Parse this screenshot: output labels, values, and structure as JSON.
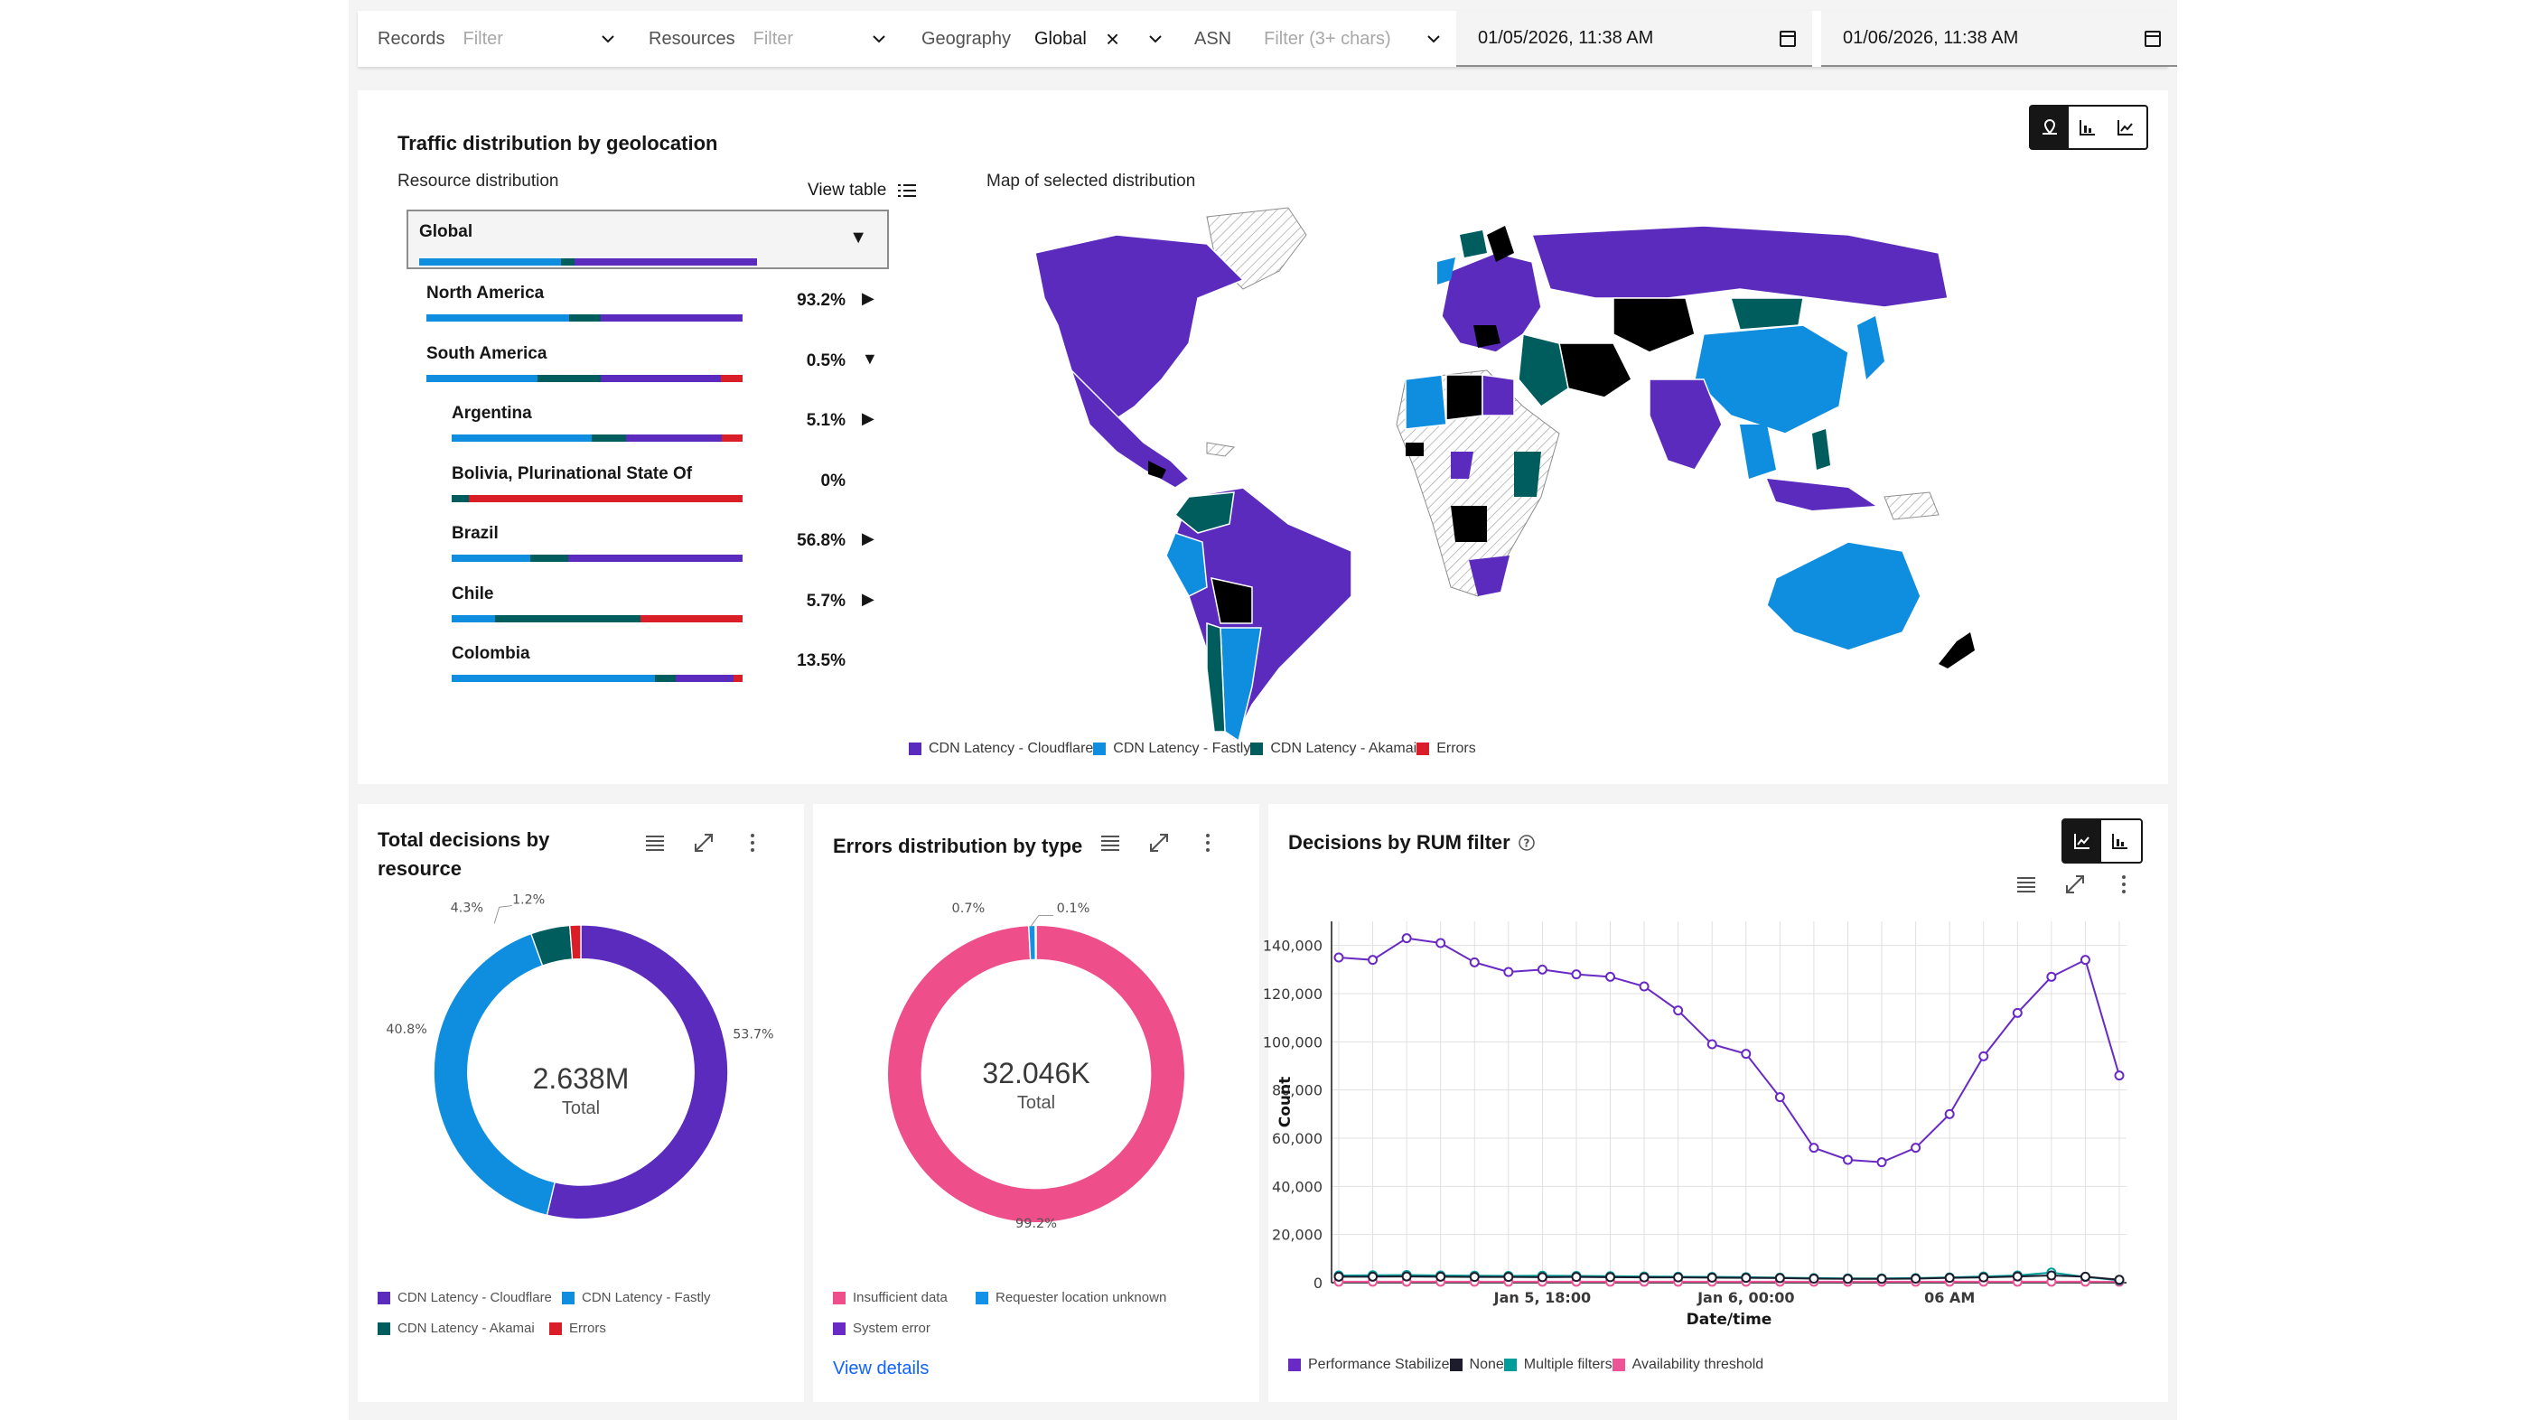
{
  "filters": {
    "records_label": "Records",
    "records_placeholder": "Filter",
    "resources_label": "Resources",
    "resources_placeholder": "Filter",
    "geography_label": "Geography",
    "geography_value": "Global",
    "asn_label": "ASN",
    "asn_placeholder": "Filter (3+ chars)",
    "date_from": "01/05/2026, 11:38 AM",
    "date_to": "01/06/2026, 11:38 AM"
  },
  "geo_panel": {
    "title": "Traffic distribution by geolocation",
    "resource_distribution_label": "Resource distribution",
    "view_table_label": "View table",
    "map_label": "Map of selected distribution",
    "selected": "Global",
    "rows": [
      {
        "name": "North America",
        "pct": "93.2%",
        "arrow": "▶",
        "indent": 0,
        "bar": [
          0.45,
          0.1,
          0.45,
          0.0
        ]
      },
      {
        "name": "South America",
        "pct": "0.5%",
        "arrow": "▼",
        "indent": 0,
        "bar": [
          0.35,
          0.2,
          0.38,
          0.07
        ]
      },
      {
        "name": "Argentina",
        "pct": "5.1%",
        "arrow": "▶",
        "indent": 1,
        "bar": [
          0.48,
          0.12,
          0.33,
          0.07
        ]
      },
      {
        "name": "Bolivia, Plurinational State Of",
        "pct": "0%",
        "arrow": "",
        "indent": 1,
        "bar": [
          0.0,
          0.06,
          0.0,
          0.94
        ]
      },
      {
        "name": "Brazil",
        "pct": "56.8%",
        "arrow": "▶",
        "indent": 1,
        "bar": [
          0.27,
          0.13,
          0.6,
          0.0
        ]
      },
      {
        "name": "Chile",
        "pct": "5.7%",
        "arrow": "▶",
        "indent": 1,
        "bar": [
          0.15,
          0.5,
          0.0,
          0.35
        ]
      },
      {
        "name": "Colombia",
        "pct": "13.5%",
        "arrow": "",
        "indent": 1,
        "bar": [
          0.7,
          0.07,
          0.2,
          0.03
        ]
      }
    ],
    "legend": [
      "CDN Latency - Cloudflare",
      "CDN Latency - Fastly",
      "CDN Latency - Akamai",
      "Errors"
    ]
  },
  "colors": {
    "cloudflare": "#5b2bbd",
    "fastly": "#0f8ee0",
    "akamai": "#005d5d",
    "errors": "#da1e28",
    "insufficient": "#ee4f8a",
    "requester": "#1192e8",
    "system": "#6929c4",
    "none": "#1c1c2c",
    "multiple": "#009d9a",
    "availability": "#ee5396"
  },
  "decisions_panel": {
    "title_line1": "Total decisions by",
    "title_line2": "resource",
    "total_value": "2.638M",
    "total_label": "Total",
    "legend": [
      "CDN Latency - Cloudflare",
      "CDN Latency - Fastly",
      "CDN Latency - Akamai",
      "Errors"
    ]
  },
  "errors_panel": {
    "title": "Errors distribution by type",
    "total_value": "32.046K",
    "total_label": "Total",
    "legend": [
      "Insufficient data",
      "Requester location unknown",
      "System error"
    ],
    "view_details": "View details"
  },
  "rum_panel": {
    "title": "Decisions by RUM filter",
    "legend": [
      "Performance Stabilize",
      "None",
      "Multiple filters",
      "Availability threshold"
    ]
  },
  "chart_data": [
    {
      "type": "pie",
      "title": "Total decisions by resource",
      "categories": [
        "CDN Latency - Cloudflare",
        "CDN Latency - Fastly",
        "CDN Latency - Akamai",
        "Errors"
      ],
      "values": [
        53.7,
        40.8,
        4.3,
        1.2
      ],
      "labels": [
        "53.7%",
        "40.8%",
        "4.3%",
        "1.2%"
      ]
    },
    {
      "type": "pie",
      "title": "Errors distribution by type",
      "categories": [
        "Insufficient data",
        "Requester location unknown",
        "System error"
      ],
      "values": [
        99.2,
        0.7,
        0.1
      ],
      "labels": [
        "99.2%",
        "0.7%",
        "0.1%"
      ]
    },
    {
      "type": "line",
      "title": "Decisions by RUM filter",
      "xlabel": "Date/time",
      "ylabel": "Count",
      "ylim": [
        0,
        150000
      ],
      "yticks": [
        "0",
        "20,000",
        "40,000",
        "60,000",
        "80,000",
        "100,000",
        "120,000",
        "140,000"
      ],
      "xticks": [
        {
          "label": "Jan 5, 18:00",
          "index": 6
        },
        {
          "label": "Jan 6, 00:00",
          "index": 12
        },
        {
          "label": "06 AM",
          "index": 18
        }
      ],
      "series": [
        {
          "name": "Performance Stabilize",
          "values": [
            135000,
            134000,
            143000,
            141000,
            133000,
            129000,
            130000,
            128000,
            127000,
            123000,
            113000,
            99000,
            95000,
            77000,
            56000,
            51000,
            50000,
            56000,
            70000,
            94000,
            112000,
            127000,
            134000,
            86000
          ]
        },
        {
          "name": "None",
          "values": [
            2500,
            2500,
            2600,
            2500,
            2400,
            2400,
            2300,
            2400,
            2300,
            2200,
            2200,
            2100,
            2000,
            1900,
            1700,
            1600,
            1600,
            1700,
            2000,
            2200,
            2600,
            3000,
            2500,
            1200
          ]
        },
        {
          "name": "Multiple filters",
          "values": [
            3000,
            3100,
            3200,
            3000,
            2900,
            2800,
            2900,
            2800,
            2700,
            2600,
            2500,
            2400,
            2300,
            2100,
            1900,
            1800,
            1800,
            1900,
            2200,
            2600,
            3000,
            4200,
            2400,
            1000
          ]
        },
        {
          "name": "Availability threshold",
          "values": [
            400,
            400,
            400,
            400,
            400,
            400,
            400,
            400,
            400,
            400,
            400,
            400,
            400,
            400,
            400,
            400,
            400,
            400,
            400,
            400,
            400,
            400,
            400,
            400
          ]
        }
      ]
    }
  ]
}
